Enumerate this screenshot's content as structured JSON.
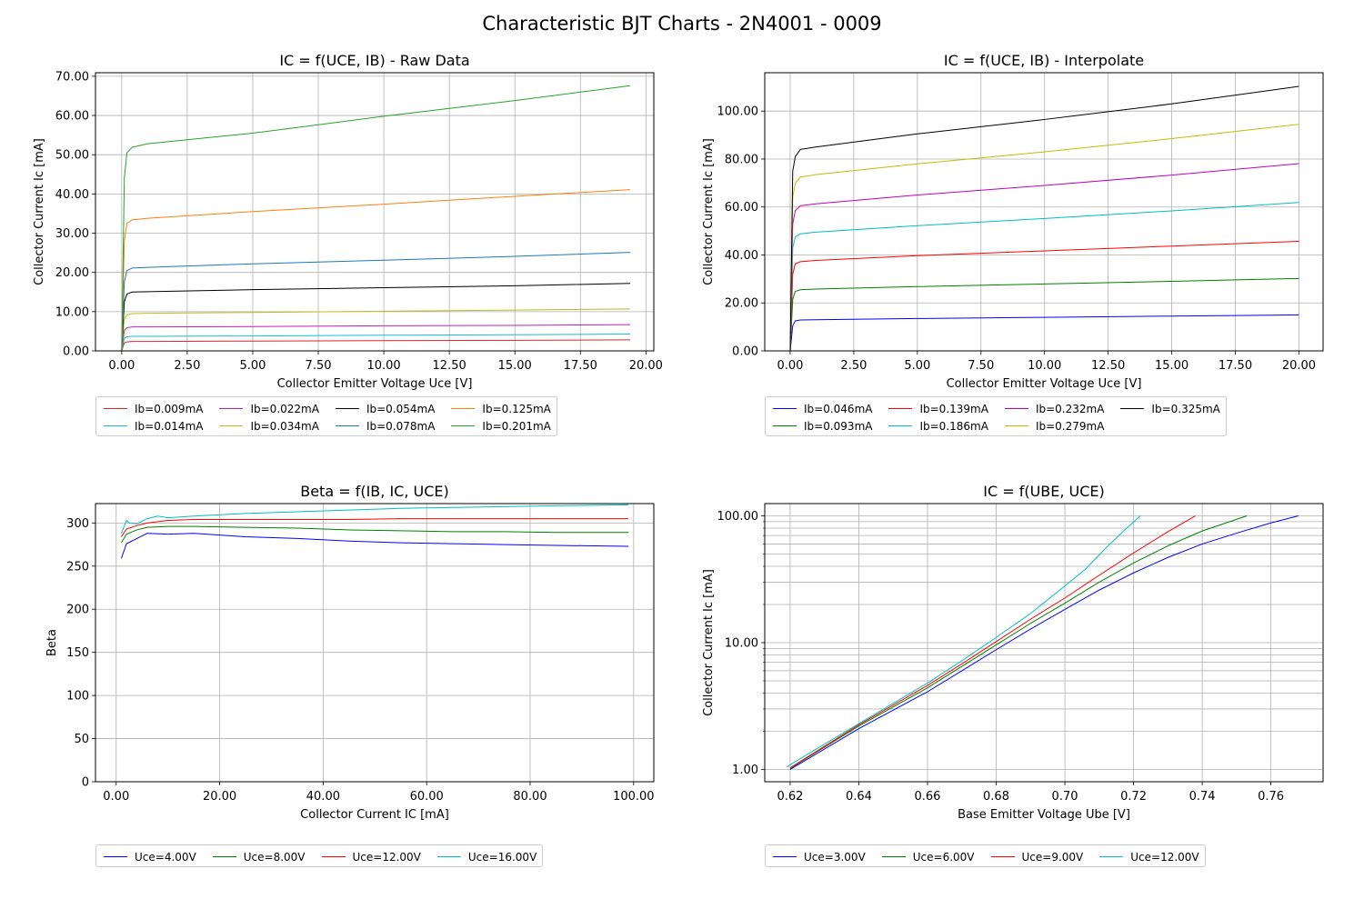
{
  "suptitle": "Characteristic BJT Charts - 2N4001 - 0009",
  "colors": {
    "axis": "#000000",
    "grid": "#b0b0b0",
    "mpl_cycle": [
      "#d62728",
      "#17becf",
      "#bcbd22",
      "#9467bd",
      "#1f77b4",
      "#ff7f0e",
      "#2ca02c",
      "#000000"
    ]
  },
  "chart_data": [
    {
      "id": "raw",
      "type": "line",
      "title": "IC = f(UCE, IB) - Raw Data",
      "xlabel": "Collector Emitter Voltage Uce [V]",
      "ylabel": "Collector Current Ic [mA]",
      "xlim": [
        -1.0,
        20.3
      ],
      "ylim": [
        0,
        70.9
      ],
      "xticks": [
        0,
        2.5,
        5,
        7.5,
        10,
        12.5,
        15,
        17.5,
        20
      ],
      "xtick_labels": [
        "0.00",
        "2.50",
        "5.00",
        "7.50",
        "10.00",
        "12.50",
        "15.00",
        "17.50",
        "20.00"
      ],
      "yticks": [
        0,
        10,
        20,
        30,
        40,
        50,
        60,
        70
      ],
      "ytick_labels": [
        "0.00",
        "10.00",
        "20.00",
        "30.00",
        "40.00",
        "50.00",
        "60.00",
        "70.00"
      ],
      "grid": true,
      "legend_position": "below",
      "legend_rows": 2,
      "series": [
        {
          "name": "Ib=0.009mA",
          "color": "#d62728",
          "x": [
            0,
            0.1,
            0.2,
            0.4,
            1,
            5,
            10,
            15,
            19.4
          ],
          "y": [
            0,
            2.0,
            2.3,
            2.4,
            2.4,
            2.5,
            2.6,
            2.7,
            2.8
          ]
        },
        {
          "name": "Ib=0.014mA",
          "color": "#17becf",
          "x": [
            0,
            0.1,
            0.2,
            0.4,
            1,
            5,
            10,
            15,
            19.4
          ],
          "y": [
            0,
            3.2,
            3.6,
            3.7,
            3.7,
            3.8,
            4.0,
            4.1,
            4.3
          ]
        },
        {
          "name": "Ib=0.022mA",
          "color": "#c020c0",
          "x": [
            0,
            0.1,
            0.2,
            0.4,
            1,
            5,
            10,
            15,
            19.4
          ],
          "y": [
            0,
            5.2,
            5.9,
            6.1,
            6.1,
            6.2,
            6.4,
            6.5,
            6.7
          ]
        },
        {
          "name": "Ib=0.034mA",
          "color": "#bcbd22",
          "x": [
            0,
            0.1,
            0.2,
            0.4,
            1,
            5,
            10,
            15,
            19.4
          ],
          "y": [
            0,
            8.0,
            9.2,
            9.5,
            9.6,
            9.8,
            10.1,
            10.4,
            10.7
          ]
        },
        {
          "name": "Ib=0.054mA",
          "color": "#000000",
          "x": [
            0,
            0.1,
            0.2,
            0.4,
            1,
            5,
            10,
            15,
            19.4
          ],
          "y": [
            0,
            12.5,
            14.5,
            15.0,
            15.1,
            15.6,
            16.1,
            16.6,
            17.2
          ]
        },
        {
          "name": "Ib=0.078mA",
          "color": "#1f77b4",
          "x": [
            0,
            0.1,
            0.2,
            0.4,
            1,
            5,
            10,
            15,
            19.4
          ],
          "y": [
            0,
            17.5,
            20.5,
            21.1,
            21.3,
            22.2,
            23.1,
            24.1,
            25.1
          ]
        },
        {
          "name": "Ib=0.125mA",
          "color": "#ff7f0e",
          "x": [
            0,
            0.1,
            0.2,
            0.4,
            1,
            5,
            10,
            15,
            19.4
          ],
          "y": [
            0,
            28.0,
            32.5,
            33.4,
            33.8,
            35.5,
            37.4,
            39.4,
            41.1
          ]
        },
        {
          "name": "Ib=0.201mA",
          "color": "#2ca02c",
          "x": [
            0,
            0.1,
            0.2,
            0.4,
            1,
            5,
            10,
            15,
            19.4
          ],
          "y": [
            0,
            44.0,
            50.5,
            51.9,
            52.8,
            55.5,
            59.8,
            63.8,
            67.6
          ]
        }
      ]
    },
    {
      "id": "interp",
      "type": "line",
      "title": "IC = f(UCE, IB) - Interpolate",
      "xlabel": "Collector Emitter Voltage Uce [V]",
      "ylabel": "Collector Current Ic [mA]",
      "xlim": [
        -1.0,
        20.95
      ],
      "ylim": [
        0,
        116
      ],
      "xticks": [
        0,
        2.5,
        5,
        7.5,
        10,
        12.5,
        15,
        17.5,
        20
      ],
      "xtick_labels": [
        "0.00",
        "2.50",
        "5.00",
        "7.50",
        "10.00",
        "12.50",
        "15.00",
        "17.50",
        "20.00"
      ],
      "yticks": [
        0,
        20,
        40,
        60,
        80,
        100
      ],
      "ytick_labels": [
        "0.00",
        "20.00",
        "40.00",
        "60.00",
        "80.00",
        "100.00"
      ],
      "grid": true,
      "legend_position": "below",
      "legend_rows": 2,
      "series": [
        {
          "name": "Ib=0.046mA",
          "color": "#0000ff",
          "x": [
            0,
            0.1,
            0.2,
            0.4,
            1,
            5,
            10,
            15,
            20
          ],
          "y": [
            0,
            10.5,
            12.5,
            12.9,
            13.0,
            13.5,
            14.0,
            14.5,
            15.0
          ]
        },
        {
          "name": "Ib=0.093mA",
          "color": "#008000",
          "x": [
            0,
            0.1,
            0.2,
            0.4,
            1,
            5,
            10,
            15,
            20
          ],
          "y": [
            0,
            21.5,
            24.8,
            25.5,
            25.8,
            26.8,
            27.9,
            29.0,
            30.2
          ]
        },
        {
          "name": "Ib=0.139mA",
          "color": "#ff0000",
          "x": [
            0,
            0.1,
            0.2,
            0.4,
            1,
            5,
            10,
            15,
            20
          ],
          "y": [
            0,
            32.0,
            36.3,
            37.2,
            37.7,
            39.7,
            41.7,
            43.7,
            45.7
          ]
        },
        {
          "name": "Ib=0.186mA",
          "color": "#00bfbf",
          "x": [
            0,
            0.1,
            0.2,
            0.4,
            1,
            5,
            10,
            15,
            20
          ],
          "y": [
            0,
            43.0,
            47.5,
            48.8,
            49.5,
            52.2,
            55.2,
            58.4,
            61.9
          ]
        },
        {
          "name": "Ib=0.232mA",
          "color": "#bf00bf",
          "x": [
            0,
            0.1,
            0.2,
            0.4,
            1,
            5,
            10,
            15,
            20
          ],
          "y": [
            0,
            53.0,
            58.5,
            60.5,
            61.3,
            65.0,
            69.0,
            73.3,
            78.1
          ]
        },
        {
          "name": "Ib=0.279mA",
          "color": "#bfbf00",
          "x": [
            0,
            0.1,
            0.2,
            0.4,
            1,
            5,
            10,
            15,
            20
          ],
          "y": [
            0,
            64.0,
            70.0,
            72.5,
            73.5,
            78.0,
            83.0,
            88.5,
            94.5
          ]
        },
        {
          "name": "Ib=0.325mA",
          "color": "#000000",
          "x": [
            0,
            0.1,
            0.2,
            0.4,
            1,
            5,
            10,
            15,
            20
          ],
          "y": [
            0,
            75.0,
            81.0,
            84.0,
            85.0,
            90.5,
            96.5,
            103.0,
            110.3
          ]
        }
      ]
    },
    {
      "id": "beta",
      "type": "line",
      "title": "Beta = f(IB, IC, UCE)",
      "xlabel": "Collector Current IC [mA]",
      "ylabel": "Beta",
      "xlim": [
        -4.0,
        103.9
      ],
      "ylim": [
        0,
        322.5
      ],
      "xticks": [
        0,
        20,
        40,
        60,
        80,
        100
      ],
      "xtick_labels": [
        "0.00",
        "20.00",
        "40.00",
        "60.00",
        "80.00",
        "100.00"
      ],
      "yticks": [
        0,
        50,
        100,
        150,
        200,
        250,
        300
      ],
      "ytick_labels": [
        "0",
        "50",
        "100",
        "150",
        "200",
        "250",
        "300"
      ],
      "grid": true,
      "legend_position": "below",
      "legend_rows": 1,
      "series": [
        {
          "name": "Uce=4.00V",
          "color": "#0000ff",
          "x": [
            1,
            2,
            4,
            6,
            10,
            15,
            25,
            35,
            45,
            55,
            65,
            75,
            85,
            99
          ],
          "y": [
            259,
            276,
            282,
            288,
            287,
            288,
            284,
            282,
            279,
            277,
            276,
            275,
            274,
            273
          ]
        },
        {
          "name": "Uce=8.00V",
          "color": "#008000",
          "x": [
            1,
            2,
            4,
            6,
            10,
            15,
            25,
            35,
            45,
            55,
            65,
            75,
            85,
            99
          ],
          "y": [
            277,
            287,
            292,
            295,
            296,
            296,
            295,
            294,
            292,
            291,
            290,
            290,
            289,
            289
          ]
        },
        {
          "name": "Uce=12.00V",
          "color": "#ff0000",
          "x": [
            1,
            2,
            4,
            6,
            10,
            15,
            25,
            35,
            45,
            55,
            65,
            75,
            85,
            99
          ],
          "y": [
            284,
            293,
            297,
            300,
            303,
            304,
            304,
            304,
            304,
            305,
            305,
            305,
            305,
            305
          ]
        },
        {
          "name": "Uce=16.00V",
          "color": "#00bfbf",
          "x": [
            1,
            2,
            2.5,
            4,
            6,
            8,
            10,
            15,
            25,
            35,
            45,
            55,
            65,
            75,
            85,
            99
          ],
          "y": [
            288,
            303,
            300,
            299,
            305,
            308,
            306,
            308,
            311,
            313,
            315,
            317,
            318,
            319,
            320,
            321
          ]
        }
      ]
    },
    {
      "id": "ube",
      "type": "line",
      "title": "IC = f(UBE, UCE)",
      "xlabel": "Base Emitter Voltage Ube [V]",
      "ylabel": "Collector Current Ic [mA]",
      "xlim": [
        0.6126,
        0.7752
      ],
      "ylim": [
        0.8,
        125
      ],
      "yscale": "log",
      "xticks": [
        0.62,
        0.64,
        0.66,
        0.68,
        0.7,
        0.72,
        0.74,
        0.76
      ],
      "xtick_labels": [
        "0.62",
        "0.64",
        "0.66",
        "0.68",
        "0.70",
        "0.72",
        "0.74",
        "0.76"
      ],
      "yticks": [
        1,
        10,
        100
      ],
      "ytick_labels": [
        "1.00",
        "10.00",
        "100.00"
      ],
      "grid": true,
      "legend_position": "below",
      "legend_rows": 1,
      "series": [
        {
          "name": "Uce=3.00V",
          "color": "#0000ff",
          "x": [
            0.62,
            0.64,
            0.66,
            0.67,
            0.68,
            0.69,
            0.7,
            0.71,
            0.72,
            0.73,
            0.74,
            0.75,
            0.76,
            0.768
          ],
          "y": [
            1.0,
            2.1,
            4.1,
            6.0,
            8.8,
            12.8,
            18.3,
            26.0,
            35.5,
            47.0,
            60.0,
            73.0,
            88.0,
            100.0
          ]
        },
        {
          "name": "Uce=6.00V",
          "color": "#008000",
          "x": [
            0.62,
            0.64,
            0.66,
            0.67,
            0.68,
            0.69,
            0.7,
            0.71,
            0.72,
            0.73,
            0.74,
            0.753
          ],
          "y": [
            1.02,
            2.2,
            4.4,
            6.5,
            9.6,
            14.2,
            20.5,
            30.0,
            42.5,
            58.0,
            76.0,
            100.0
          ]
        },
        {
          "name": "Uce=9.00V",
          "color": "#ff0000",
          "x": [
            0.62,
            0.64,
            0.66,
            0.67,
            0.68,
            0.69,
            0.7,
            0.71,
            0.72,
            0.73,
            0.738
          ],
          "y": [
            1.03,
            2.25,
            4.6,
            6.8,
            10.2,
            15.3,
            22.5,
            34.0,
            51.0,
            75.0,
            100.0
          ]
        },
        {
          "name": "Uce=12.00V",
          "color": "#00bfbf",
          "x": [
            0.619,
            0.64,
            0.66,
            0.67,
            0.68,
            0.69,
            0.7,
            0.706,
            0.712,
            0.718,
            0.722
          ],
          "y": [
            1.05,
            2.3,
            4.8,
            7.2,
            11.0,
            17.0,
            28.0,
            38.0,
            56.0,
            80.0,
            100.0
          ]
        }
      ]
    }
  ]
}
